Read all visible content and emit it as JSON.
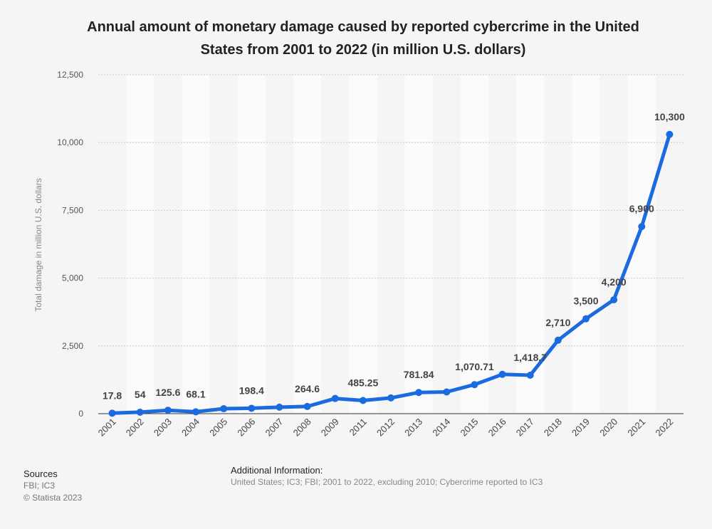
{
  "chart_data": {
    "type": "line",
    "title": "Annual amount of monetary damage caused by reported cybercrime in the United States from 2001 to 2022 (in million U.S. dollars)",
    "ylabel": "Total damage in million U.S. dollars",
    "xlabel": "",
    "categories": [
      "2001",
      "2002",
      "2003",
      "2004",
      "2005",
      "2006",
      "2007",
      "2008",
      "2009",
      "2011",
      "2012",
      "2013",
      "2014",
      "2015",
      "2016",
      "2017",
      "2018",
      "2019",
      "2020",
      "2021",
      "2022"
    ],
    "values": [
      17.8,
      54,
      125.6,
      68.1,
      183.1,
      198.4,
      239.1,
      264.6,
      559.7,
      485.25,
      581.4,
      781.84,
      800.49,
      1070.71,
      1450.7,
      1418.7,
      2710,
      3500,
      4200,
      6900,
      10300
    ],
    "data_labels": [
      "17.8",
      "54",
      "125.6",
      "68.1",
      "",
      "198.4",
      "",
      "264.6",
      "",
      "485.25",
      "",
      "781.84",
      "",
      "1,070.71",
      "",
      "1,418.7",
      "2,710",
      "3,500",
      "4,200",
      "6,900",
      "10,300"
    ],
    "ylim": [
      0,
      12500
    ],
    "yticks": [
      "0",
      "2,500",
      "5,000",
      "7,500",
      "10,000",
      "12,500"
    ],
    "ytick_values": [
      0,
      2500,
      5000,
      7500,
      10000,
      12500
    ],
    "grid": true,
    "line_color": "#1a6ae0"
  },
  "sources": {
    "heading": "Sources",
    "line1": "FBI; IC3",
    "line2": "© Statista 2023"
  },
  "additional": {
    "heading": "Additional Information:",
    "text": "United States; IC3; FBI; 2001 to 2022, excluding 2010; Cybercrime reported to IC3"
  }
}
